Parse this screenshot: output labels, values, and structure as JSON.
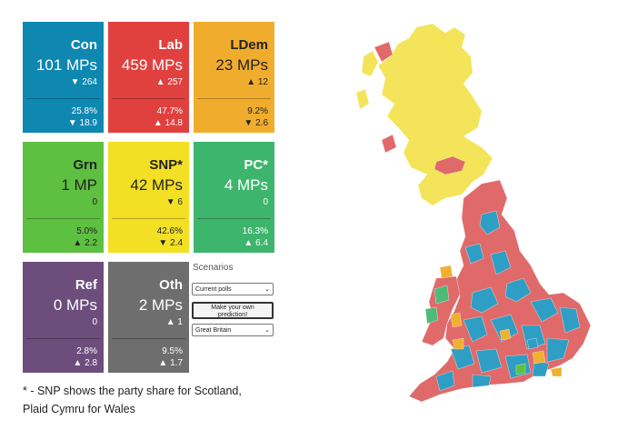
{
  "parties": [
    {
      "name": "Con",
      "mps": "101 MPs",
      "change": "▼ 264",
      "share": "25.8%",
      "share_change": "▼ 18.9",
      "color": "#0e87b1"
    },
    {
      "name": "Lab",
      "mps": "459 MPs",
      "change": "▲ 257",
      "share": "47.7%",
      "share_change": "▲ 14.8",
      "color": "#e0413f"
    },
    {
      "name": "LDem",
      "mps": "23 MPs",
      "change": "▲ 12",
      "share": "9.2%",
      "share_change": "▼ 2.6",
      "color": "#f0ad2d"
    },
    {
      "name": "Grn",
      "mps": "1 MP",
      "change": "0",
      "share": "5.0%",
      "share_change": "▲ 2.2",
      "color": "#5dc040"
    },
    {
      "name": "SNP*",
      "mps": "42 MPs",
      "change": "▼ 6",
      "share": "42.6%",
      "share_change": "▼ 2.4",
      "color": "#f3e024"
    },
    {
      "name": "PC*",
      "mps": "4 MPs",
      "change": "0",
      "share": "16.3%",
      "share_change": "▲ 6.4",
      "color": "#3db56c"
    },
    {
      "name": "Ref",
      "mps": "0 MPs",
      "change": "0",
      "share": "2.8%",
      "share_change": "▲ 2.8",
      "color": "#6d4d7c"
    },
    {
      "name": "Oth",
      "mps": "2 MPs",
      "change": "▲ 1",
      "share": "9.5%",
      "share_change": "▲ 1.7",
      "color": "#6e6e6e"
    }
  ],
  "scenarios": {
    "label": "Scenarios",
    "select_value": "Current polls",
    "button_label_line1": "Make your own",
    "button_label_line2": "prediction!",
    "region_value": "Great Britain"
  },
  "footnote": {
    "line1": "* - SNP shows the party share for Scotland,",
    "line2": "Plaid Cymru for Wales"
  },
  "map_colors": {
    "lab": "#e06a6a",
    "con": "#2f9ec4",
    "snp": "#f3e45a",
    "ldem": "#f0b030",
    "pc": "#4dbb78",
    "grn": "#5dc040"
  }
}
